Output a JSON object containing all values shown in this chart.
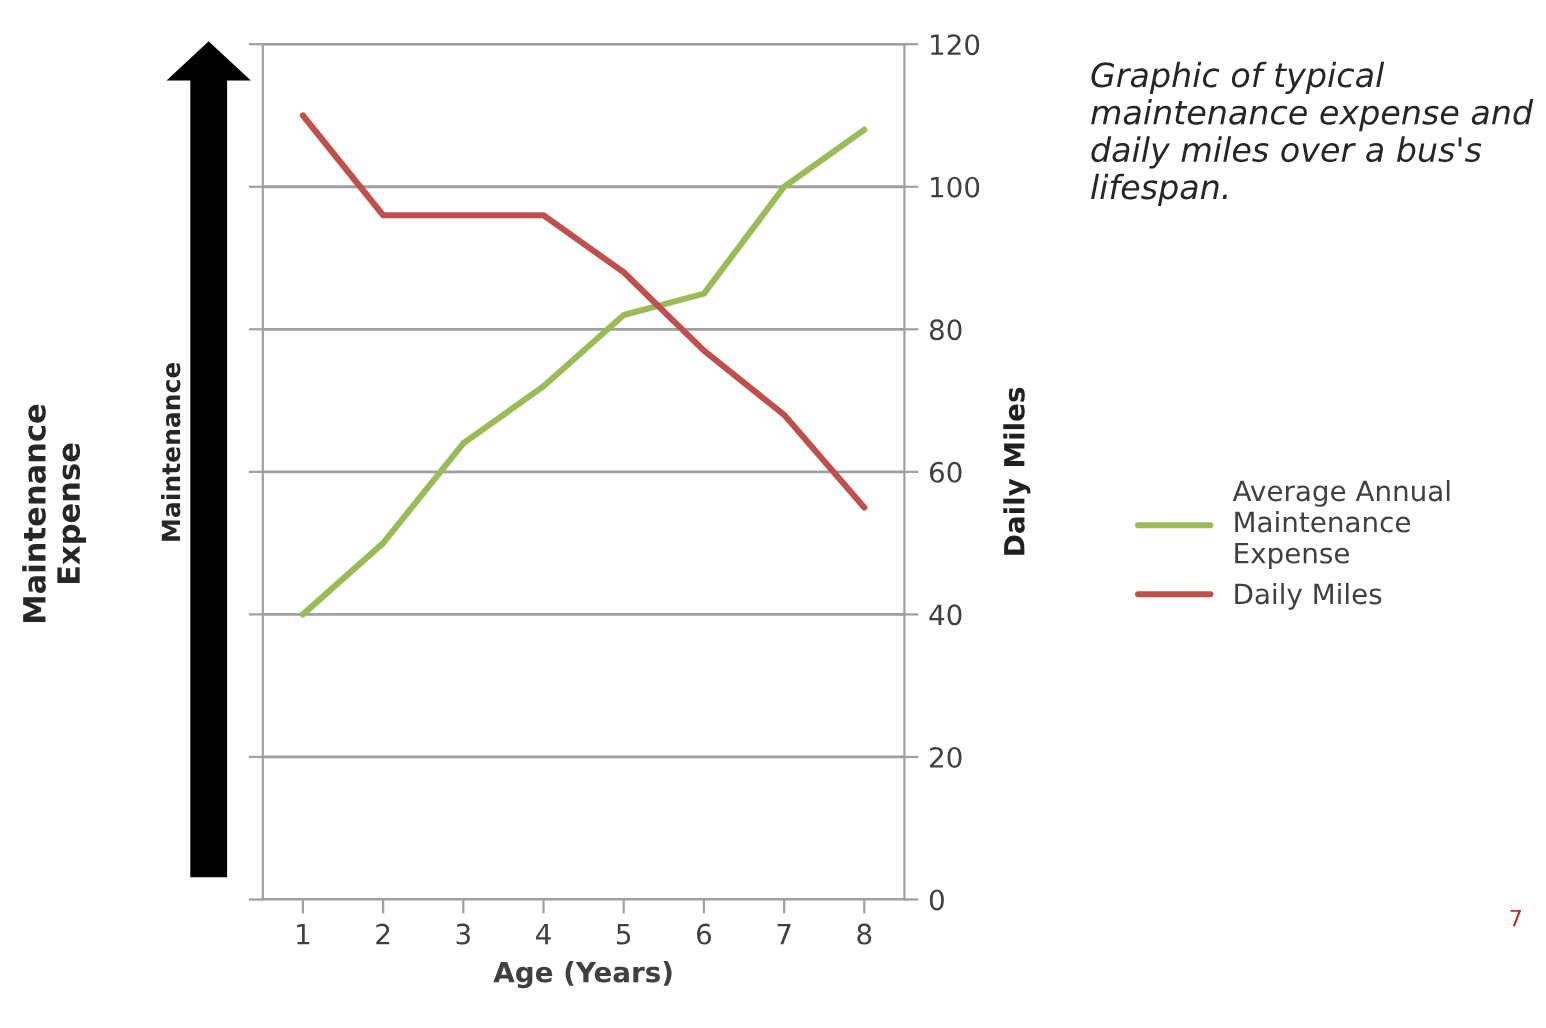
{
  "chart_data": {
    "type": "line",
    "title": "Graphic of typical maintenance expense and daily miles over a bus's lifespan.",
    "xlabel": "Age (Years)",
    "ylabel": "Daily Miles",
    "categories": [
      "1",
      "2",
      "3",
      "4",
      "5",
      "6",
      "7",
      "8"
    ],
    "series": [
      {
        "name": "Average Annual Maintenance Expense",
        "color": "#9bbb59",
        "values": [
          40,
          50,
          64,
          72,
          82,
          85,
          100,
          108
        ]
      },
      {
        "name": "Daily Miles",
        "color": "#c0504d",
        "values": [
          110,
          96,
          96,
          96,
          88,
          77,
          68,
          55
        ]
      }
    ],
    "ylim": [
      0,
      120
    ],
    "yticks": [
      0,
      20,
      40,
      60,
      80,
      100,
      120
    ],
    "grid": "y",
    "legend": "right",
    "marker": "none",
    "line_style": "solid",
    "annotations": [
      "Maintenance Expense",
      "Maintenance",
      "7"
    ]
  }
}
